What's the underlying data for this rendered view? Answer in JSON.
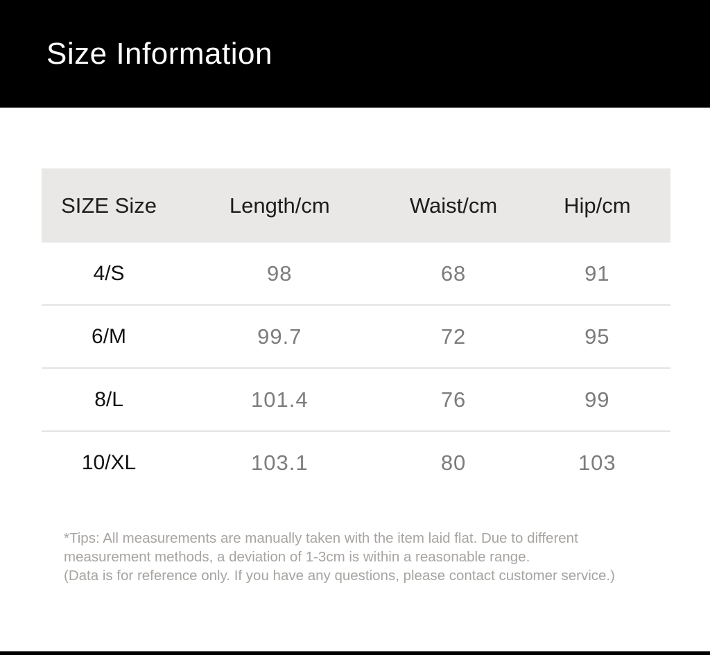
{
  "header": {
    "title": "Size Information"
  },
  "table": {
    "columns": [
      "SIZE Size",
      "Length/cm",
      "Waist/cm",
      "Hip/cm"
    ],
    "rows": [
      [
        "4/S",
        "98",
        "68",
        "91"
      ],
      [
        "6/M",
        "99.7",
        "72",
        "95"
      ],
      [
        "8/L",
        "101.4",
        "76",
        "99"
      ],
      [
        "10/XL",
        "103.1",
        "80",
        "103"
      ]
    ]
  },
  "tips": {
    "lines": [
      "*Tips: All measurements are manually taken with the item laid flat. Due to different",
      "measurement methods, a deviation of 1-3cm is within a reasonable range.",
      "(Data is for reference only. If you have any questions, please contact customer service.)"
    ]
  },
  "colors": {
    "banner_bg": "#000000",
    "banner_text": "#ffffff",
    "table_header_bg": "#e9e8e6",
    "table_header_text": "#1c1c1c",
    "size_label_text": "#121212",
    "value_text": "#7c7c7c",
    "row_divider": "#e4e3e2",
    "tips_text": "#a7a4a1"
  }
}
